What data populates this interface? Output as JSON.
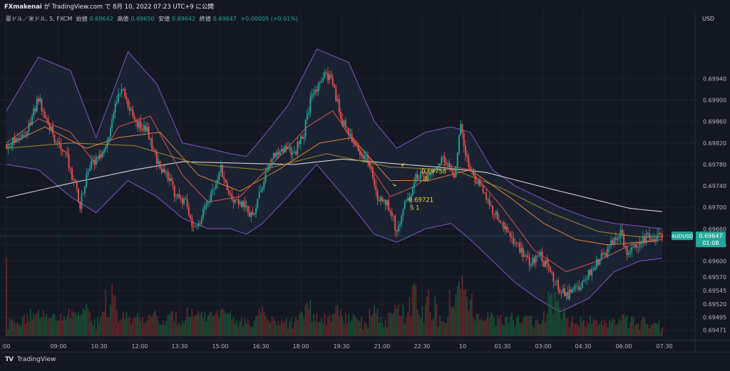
{
  "header": {
    "author": "FXmakenai",
    "publish_text": "が TradingView.com で 8月 10, 2022 07:23 UTC+9 に公開"
  },
  "legend": {
    "symbol": "豪ドル／米ドル, 5, FXCM",
    "open_label": "始値",
    "open": "0.69642",
    "high_label": "高値",
    "high": "0.69650",
    "low_label": "安値",
    "low": "0.69642",
    "close_label": "終値",
    "close": "0.69647",
    "change": "+0.00005 (+0.01%)"
  },
  "axis": {
    "currency": "USD"
  },
  "price_tag": {
    "symbol": "AUDUSD",
    "price": "0.69647",
    "countdown": "01:08"
  },
  "annotations": {
    "hi_price": "0.69758",
    "hi_label": "決",
    "lo_price": "0.69721",
    "lo_label": "S 1"
  },
  "footer": {
    "brand": "TradingView",
    "logo_mark": "TV"
  },
  "colors": {
    "background": "#131722",
    "up": "#26a69a",
    "down": "#ef5350",
    "bb_band": "#7e57c2",
    "bb_fill": "#1c2333",
    "sma_slow": "#d1d4dc",
    "ma_orange": "#e0823d",
    "ma_red": "#d35454",
    "ma_olive": "#9e8a2a",
    "annotation": "#f5d442",
    "price_line": "#26a69a"
  },
  "chart_data": {
    "type": "candlestick",
    "symbol": "豪ドル／米ドル",
    "timeframe": "5",
    "ylim": [
      0.6946,
      0.7004
    ],
    "y_ticks": [
      "0.69940",
      "0.69900",
      "0.69860",
      "0.69820",
      "0.69780",
      "0.69740",
      "0.69700",
      "0.69660",
      "0.69630",
      "0.69600",
      "0.69570",
      "0.69545",
      "0.69520",
      "0.69495",
      "0.69471"
    ],
    "x_ticks": [
      ":00",
      "09:00",
      "10:30",
      "12:00",
      "13:30",
      "15:00",
      "16:30",
      "18:00",
      "19:30",
      "21:00",
      "22:30",
      "10",
      "01:30",
      "03:00",
      "04:30",
      "06:00",
      "07:30"
    ],
    "close_path": [
      [
        0,
        0.69818
      ],
      [
        8,
        0.69825
      ],
      [
        14,
        0.6985
      ],
      [
        20,
        0.69905
      ],
      [
        24,
        0.6987
      ],
      [
        30,
        0.6983
      ],
      [
        38,
        0.6979
      ],
      [
        46,
        0.69705
      ],
      [
        52,
        0.6978
      ],
      [
        58,
        0.6979
      ],
      [
        64,
        0.6983
      ],
      [
        68,
        0.699
      ],
      [
        72,
        0.69925
      ],
      [
        76,
        0.6989
      ],
      [
        82,
        0.69855
      ],
      [
        88,
        0.69845
      ],
      [
        94,
        0.69785
      ],
      [
        100,
        0.6976
      ],
      [
        106,
        0.6972
      ],
      [
        112,
        0.6971
      ],
      [
        118,
        0.69655
      ],
      [
        124,
        0.697
      ],
      [
        130,
        0.6974
      ],
      [
        134,
        0.6977
      ],
      [
        140,
        0.6972
      ],
      [
        146,
        0.6971
      ],
      [
        152,
        0.6969
      ],
      [
        156,
        0.697
      ],
      [
        162,
        0.6976
      ],
      [
        168,
        0.698
      ],
      [
        174,
        0.6981
      ],
      [
        180,
        0.698
      ],
      [
        186,
        0.6984
      ],
      [
        190,
        0.699
      ],
      [
        196,
        0.6993
      ],
      [
        200,
        0.6995
      ],
      [
        204,
        0.6993
      ],
      [
        210,
        0.6986
      ],
      [
        216,
        0.6983
      ],
      [
        222,
        0.6979
      ],
      [
        226,
        0.6979
      ],
      [
        232,
        0.6972
      ],
      [
        238,
        0.69705
      ],
      [
        242,
        0.6968
      ],
      [
        244,
        0.6965
      ],
      [
        248,
        0.697
      ],
      [
        252,
        0.6972
      ],
      [
        256,
        0.6976
      ],
      [
        262,
        0.6976
      ],
      [
        266,
        0.6977
      ],
      [
        272,
        0.6979
      ],
      [
        276,
        0.6978
      ],
      [
        280,
        0.6976
      ],
      [
        284,
        0.6985
      ],
      [
        288,
        0.6979
      ],
      [
        292,
        0.6976
      ],
      [
        296,
        0.6974
      ],
      [
        300,
        0.6972
      ],
      [
        304,
        0.6969
      ],
      [
        310,
        0.6967
      ],
      [
        316,
        0.6964
      ],
      [
        322,
        0.6962
      ],
      [
        328,
        0.69595
      ],
      [
        334,
        0.6961
      ],
      [
        340,
        0.69575
      ],
      [
        346,
        0.69545
      ],
      [
        350,
        0.69535
      ],
      [
        354,
        0.69545
      ],
      [
        360,
        0.6956
      ],
      [
        364,
        0.69575
      ],
      [
        370,
        0.696
      ],
      [
        376,
        0.6962
      ],
      [
        380,
        0.6964
      ],
      [
        384,
        0.6965
      ],
      [
        388,
        0.6962
      ],
      [
        392,
        0.6963
      ],
      [
        396,
        0.69635
      ],
      [
        400,
        0.69645
      ],
      [
        404,
        0.6964
      ],
      [
        408,
        0.69647
      ]
    ],
    "bb_upper": [
      [
        0,
        0.6988
      ],
      [
        20,
        0.6998
      ],
      [
        40,
        0.69955
      ],
      [
        56,
        0.6983
      ],
      [
        76,
        0.6999
      ],
      [
        94,
        0.6993
      ],
      [
        110,
        0.6982
      ],
      [
        126,
        0.6981
      ],
      [
        140,
        0.698
      ],
      [
        150,
        0.69795
      ],
      [
        160,
        0.6983
      ],
      [
        176,
        0.6989
      ],
      [
        194,
        0.69995
      ],
      [
        214,
        0.6997
      ],
      [
        230,
        0.6986
      ],
      [
        244,
        0.6981
      ],
      [
        262,
        0.6984
      ],
      [
        278,
        0.6985
      ],
      [
        290,
        0.6984
      ],
      [
        304,
        0.6977
      ],
      [
        318,
        0.6974
      ],
      [
        332,
        0.6972
      ],
      [
        346,
        0.697
      ],
      [
        364,
        0.6968
      ],
      [
        380,
        0.6967
      ],
      [
        396,
        0.69665
      ],
      [
        410,
        0.6966
      ]
    ],
    "bb_lower": [
      [
        0,
        0.6978
      ],
      [
        20,
        0.6977
      ],
      [
        40,
        0.6972
      ],
      [
        56,
        0.6969
      ],
      [
        76,
        0.6975
      ],
      [
        94,
        0.6972
      ],
      [
        110,
        0.6968
      ],
      [
        126,
        0.6966
      ],
      [
        140,
        0.6966
      ],
      [
        150,
        0.6965
      ],
      [
        160,
        0.6967
      ],
      [
        176,
        0.6972
      ],
      [
        194,
        0.6978
      ],
      [
        214,
        0.6971
      ],
      [
        230,
        0.6965
      ],
      [
        244,
        0.69635
      ],
      [
        262,
        0.6966
      ],
      [
        278,
        0.6967
      ],
      [
        290,
        0.6964
      ],
      [
        304,
        0.696
      ],
      [
        318,
        0.6956
      ],
      [
        332,
        0.6953
      ],
      [
        346,
        0.69505
      ],
      [
        364,
        0.6953
      ],
      [
        380,
        0.6958
      ],
      [
        396,
        0.696
      ],
      [
        410,
        0.69605
      ]
    ],
    "sma_slow": [
      [
        0,
        0.69718
      ],
      [
        40,
        0.69745
      ],
      [
        80,
        0.6977
      ],
      [
        110,
        0.69785
      ],
      [
        150,
        0.69782
      ],
      [
        180,
        0.6978
      ],
      [
        210,
        0.6979
      ],
      [
        240,
        0.69782
      ],
      [
        270,
        0.69775
      ],
      [
        300,
        0.69765
      ],
      [
        330,
        0.69742
      ],
      [
        360,
        0.6972
      ],
      [
        390,
        0.69698
      ],
      [
        410,
        0.69692
      ]
    ],
    "ma_fast": [
      [
        0,
        0.6982
      ],
      [
        20,
        0.69865
      ],
      [
        40,
        0.6984
      ],
      [
        56,
        0.6978
      ],
      [
        70,
        0.6985
      ],
      [
        90,
        0.6987
      ],
      [
        110,
        0.6976
      ],
      [
        126,
        0.6971
      ],
      [
        146,
        0.6972
      ],
      [
        166,
        0.6978
      ],
      [
        188,
        0.6985
      ],
      [
        204,
        0.6988
      ],
      [
        222,
        0.698
      ],
      [
        240,
        0.6972
      ],
      [
        256,
        0.6974
      ],
      [
        272,
        0.6978
      ],
      [
        290,
        0.6977
      ],
      [
        310,
        0.697
      ],
      [
        330,
        0.6962
      ],
      [
        350,
        0.6958
      ],
      [
        370,
        0.696
      ],
      [
        390,
        0.6963
      ],
      [
        410,
        0.6964
      ]
    ],
    "ma_mid": [
      [
        0,
        0.69815
      ],
      [
        24,
        0.6985
      ],
      [
        50,
        0.6981
      ],
      [
        70,
        0.6983
      ],
      [
        96,
        0.6984
      ],
      [
        120,
        0.6976
      ],
      [
        146,
        0.6973
      ],
      [
        170,
        0.6977
      ],
      [
        196,
        0.6982
      ],
      [
        216,
        0.6983
      ],
      [
        240,
        0.6975
      ],
      [
        264,
        0.6975
      ],
      [
        290,
        0.6977
      ],
      [
        314,
        0.6972
      ],
      [
        336,
        0.6967
      ],
      [
        356,
        0.6964
      ],
      [
        376,
        0.6963
      ],
      [
        396,
        0.69635
      ],
      [
        410,
        0.6964
      ]
    ],
    "ma_slow2": [
      [
        0,
        0.6981
      ],
      [
        40,
        0.6982
      ],
      [
        80,
        0.69815
      ],
      [
        120,
        0.6978
      ],
      [
        160,
        0.6977
      ],
      [
        200,
        0.698
      ],
      [
        240,
        0.69775
      ],
      [
        280,
        0.6977
      ],
      [
        310,
        0.69735
      ],
      [
        340,
        0.6969
      ],
      [
        370,
        0.69655
      ],
      [
        395,
        0.69645
      ],
      [
        410,
        0.69645
      ]
    ]
  }
}
